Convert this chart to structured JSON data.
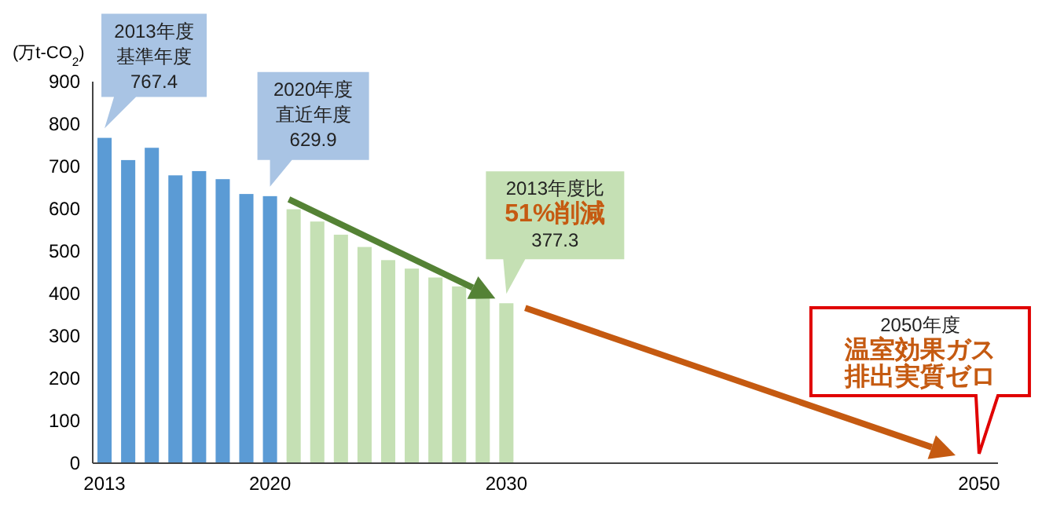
{
  "chart_data": {
    "type": "bar",
    "ylabel": "(万t-CO$_{2}$)",
    "xlim": [
      2012.5,
      2050.8
    ],
    "xticks": [
      2013,
      2020,
      2030,
      2050
    ],
    "ylim": [
      0,
      900
    ],
    "yticks": [
      0,
      100,
      200,
      300,
      400,
      500,
      600,
      700,
      800,
      900
    ],
    "grid": false,
    "series": [
      {
        "color": "#5b9bd5",
        "x": [
          2013,
          2014,
          2015,
          2016,
          2017,
          2018,
          2019,
          2020
        ],
        "values": [
          767.4,
          715,
          744,
          679,
          689,
          670,
          635,
          629.9
        ]
      },
      {
        "color": "#c5e0b4",
        "x": [
          2021,
          2022,
          2023,
          2024,
          2025,
          2026,
          2027,
          2028,
          2029,
          2030
        ],
        "values": [
          599,
          570,
          539,
          510,
          479,
          459,
          438,
          417,
          394,
          377.3
        ]
      }
    ],
    "annotations": [
      "2013年度基準年度",
      {
        "text": "767.4",
        "x": 2013,
        "y": 767.4
      },
      "2020年度直近年度",
      {
        "text": "629.9",
        "x": 2020,
        "y": 629.9
      },
      "2013年度比",
      "51%削減",
      "377.3",
      "2050年度",
      "温室効果ガス排出実質ゼロ"
    ]
  }
}
